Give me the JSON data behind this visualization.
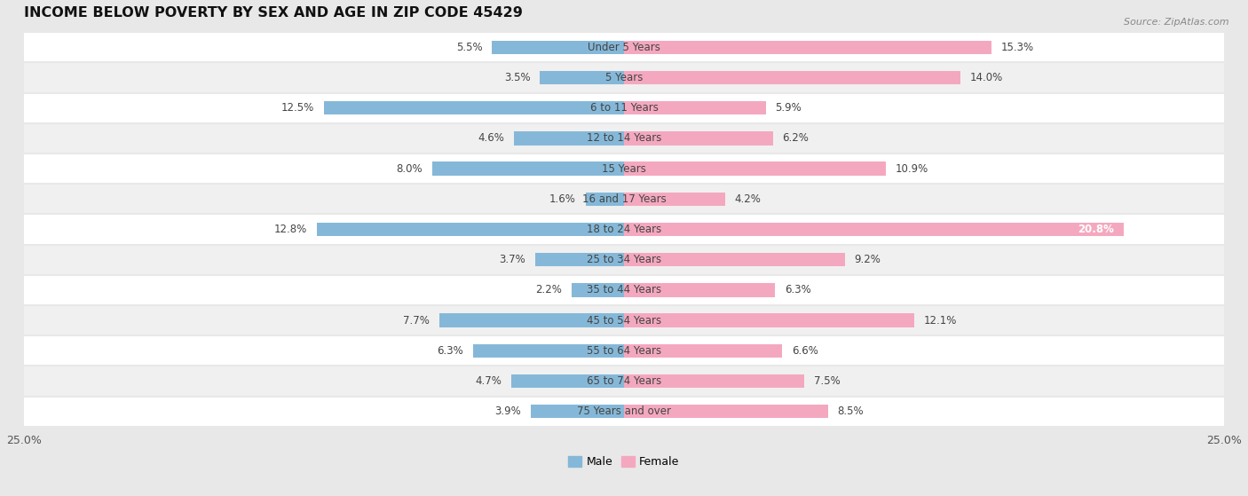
{
  "title": "INCOME BELOW POVERTY BY SEX AND AGE IN ZIP CODE 45429",
  "source": "Source: ZipAtlas.com",
  "categories": [
    "Under 5 Years",
    "5 Years",
    "6 to 11 Years",
    "12 to 14 Years",
    "15 Years",
    "16 and 17 Years",
    "18 to 24 Years",
    "25 to 34 Years",
    "35 to 44 Years",
    "45 to 54 Years",
    "55 to 64 Years",
    "65 to 74 Years",
    "75 Years and over"
  ],
  "male": [
    5.5,
    3.5,
    12.5,
    4.6,
    8.0,
    1.6,
    12.8,
    3.7,
    2.2,
    7.7,
    6.3,
    4.7,
    3.9
  ],
  "female": [
    15.3,
    14.0,
    5.9,
    6.2,
    10.9,
    4.2,
    20.8,
    9.2,
    6.3,
    12.1,
    6.6,
    7.5,
    8.5
  ],
  "male_color": "#85b8d8",
  "female_color": "#f4a8bf",
  "xlim": 25.0,
  "background_color": "#e8e8e8",
  "row_color_odd": "#ffffff",
  "row_color_even": "#f0f0f0",
  "title_fontsize": 11.5,
  "label_fontsize": 8.5,
  "tick_fontsize": 9,
  "source_fontsize": 8
}
